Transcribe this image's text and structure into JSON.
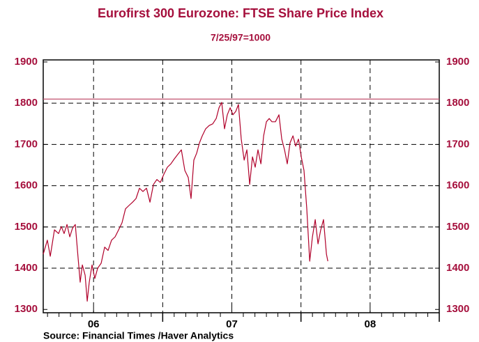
{
  "chart_data": {
    "type": "line",
    "title": "Eurofirst 300 Eurozone: FTSE Share Price Index",
    "subtitle": "7/25/97=1000",
    "source": "Source:  Financial Times /Haver Analytics",
    "xlim": [
      2006.136,
      2009.0
    ],
    "ylim": [
      1292,
      1905
    ],
    "yticks": [
      1300,
      1400,
      1500,
      1600,
      1700,
      1800,
      1900
    ],
    "xticks": [
      {
        "value": 2006.5,
        "label": "06"
      },
      {
        "value": 2007.5,
        "label": "07"
      },
      {
        "value": 2008.5,
        "label": "08"
      }
    ],
    "xmajor_ticks": [
      2007,
      2008,
      2009
    ],
    "xminor_ticks": [
      2006.167,
      2006.25,
      2006.333,
      2006.417,
      2006.583,
      2006.667,
      2006.75,
      2006.833,
      2006.917,
      2007.083,
      2007.167,
      2007.25,
      2007.333,
      2007.417,
      2007.583,
      2007.667,
      2007.75,
      2007.833,
      2007.917,
      2008.083,
      2008.167,
      2008.25,
      2008.333,
      2008.417,
      2008.583,
      2008.667,
      2008.75,
      2008.833,
      2008.917
    ],
    "grid": true,
    "reference_line": 1810,
    "reference_color": "#c0506e",
    "x": [
      2006.136,
      2006.166,
      2006.187,
      2006.217,
      2006.247,
      2006.267,
      2006.287,
      2006.308,
      2006.328,
      2006.348,
      2006.368,
      2006.388,
      2006.403,
      2006.419,
      2006.439,
      2006.454,
      2006.469,
      2006.489,
      2006.509,
      2006.53,
      2006.555,
      2006.58,
      2006.605,
      2006.63,
      2006.656,
      2006.681,
      2006.706,
      2006.731,
      2006.756,
      2006.782,
      2006.807,
      2006.832,
      2006.857,
      2006.883,
      2006.908,
      2006.933,
      2006.958,
      2006.983,
      2007.009,
      2007.034,
      2007.059,
      2007.084,
      2007.109,
      2007.135,
      2007.16,
      2007.185,
      2007.205,
      2007.225,
      2007.246,
      2007.266,
      2007.286,
      2007.311,
      2007.336,
      2007.362,
      2007.387,
      2007.407,
      2007.427,
      2007.447,
      2007.467,
      2007.488,
      2007.508,
      2007.528,
      2007.548,
      2007.568,
      2007.589,
      2007.609,
      2007.629,
      2007.649,
      2007.669,
      2007.689,
      2007.71,
      2007.73,
      2007.75,
      2007.77,
      2007.79,
      2007.815,
      2007.841,
      2007.861,
      2007.881,
      2007.901,
      2007.921,
      2007.942,
      2007.962,
      2007.982,
      2008.002,
      2008.022,
      2008.042,
      2008.063,
      2008.083,
      2008.103,
      2008.123,
      2008.143,
      2008.163,
      2008.184,
      2008.194
    ],
    "series": [
      {
        "name": "FTSE Share Price Index",
        "color": "#b0002a",
        "values": [
          1434,
          1468,
          1429,
          1493,
          1484,
          1501,
          1484,
          1506,
          1476,
          1497,
          1506,
          1425,
          1366,
          1408,
          1383,
          1320,
          1366,
          1408,
          1375,
          1400,
          1412,
          1451,
          1443,
          1468,
          1476,
          1493,
          1510,
          1544,
          1552,
          1560,
          1569,
          1594,
          1586,
          1594,
          1560,
          1603,
          1615,
          1608,
          1628,
          1645,
          1653,
          1665,
          1676,
          1687,
          1637,
          1620,
          1569,
          1662,
          1679,
          1704,
          1721,
          1738,
          1746,
          1750,
          1763,
          1789,
          1802,
          1738,
          1772,
          1789,
          1772,
          1780,
          1797,
          1713,
          1662,
          1687,
          1603,
          1670,
          1645,
          1687,
          1653,
          1721,
          1755,
          1763,
          1755,
          1755,
          1772,
          1713,
          1687,
          1653,
          1704,
          1721,
          1696,
          1713,
          1670,
          1637,
          1544,
          1417,
          1476,
          1518,
          1459,
          1493,
          1518,
          1434,
          1417
        ]
      }
    ]
  }
}
